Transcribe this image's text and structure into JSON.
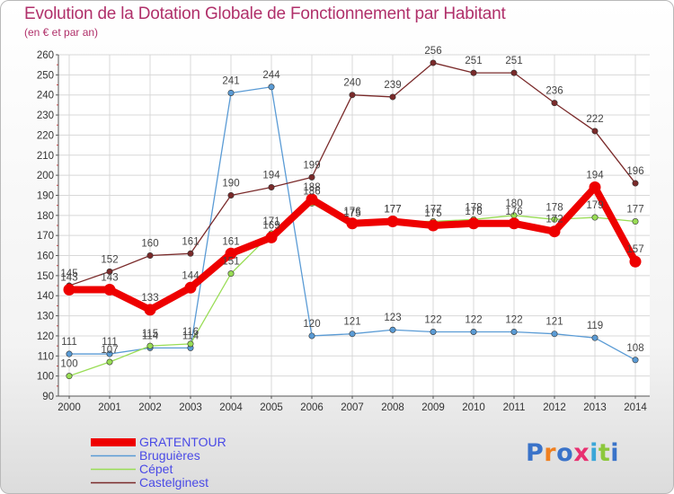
{
  "chart_data": {
    "type": "line",
    "title": "Evolution de la Dotation Globale de Fonctionnement par Habitant",
    "subtitle": "(en € et par an)",
    "xlabel": "",
    "ylabel": "",
    "ylim": [
      90,
      260
    ],
    "yticks": [
      "90",
      "100",
      "110",
      "120",
      "130",
      "140",
      "150",
      "160",
      "170",
      "180",
      "190",
      "200",
      "210",
      "220",
      "230",
      "240",
      "250",
      "260"
    ],
    "categories": [
      "2000",
      "2001",
      "2002",
      "2003",
      "2004",
      "2005",
      "2006",
      "2007",
      "2008",
      "2009",
      "2010",
      "2011",
      "2012",
      "2013",
      "2014"
    ],
    "grid": true,
    "series": [
      {
        "name": "GRATENTOUR",
        "color": "#ee0000",
        "values": [
          143,
          143,
          133,
          144,
          161,
          169,
          188,
          176,
          177,
          175,
          176,
          176,
          172,
          194,
          157
        ],
        "labels": [
          "143",
          "143",
          "133",
          "144",
          "161",
          "169",
          "188",
          "176",
          "177",
          "175",
          "176",
          "176",
          "172",
          "194",
          "157"
        ]
      },
      {
        "name": "Bruguières",
        "color": "#5a9bd5",
        "values": [
          111,
          111,
          114,
          114,
          241,
          244,
          120,
          121,
          123,
          122,
          122,
          122,
          121,
          119,
          108
        ],
        "labels": [
          "111",
          "111",
          "114",
          "114",
          "241",
          "244",
          "120",
          "121",
          "123",
          "122",
          "122",
          "122",
          "121",
          "119",
          "108"
        ]
      },
      {
        "name": "Cépet",
        "color": "#99dd55",
        "values": [
          100,
          107,
          115,
          116,
          151,
          171,
          186,
          175,
          177,
          177,
          178,
          180,
          178,
          179,
          177
        ],
        "labels": [
          "100",
          "107",
          "115",
          "116",
          "151",
          "171",
          "186",
          "175",
          "177",
          "177",
          "178",
          "180",
          "178",
          "179",
          "177"
        ]
      },
      {
        "name": "Castelginest",
        "color": "#7a2a2a",
        "values": [
          145,
          152,
          160,
          161,
          190,
          194,
          199,
          240,
          239,
          256,
          251,
          251,
          236,
          222,
          196
        ],
        "labels": [
          "145",
          "152",
          "160",
          "161",
          "190",
          "194",
          "199",
          "240",
          "239",
          "256",
          "251",
          "251",
          "236",
          "222",
          "196"
        ]
      }
    ]
  },
  "logo": {
    "text": "Proxiti"
  }
}
